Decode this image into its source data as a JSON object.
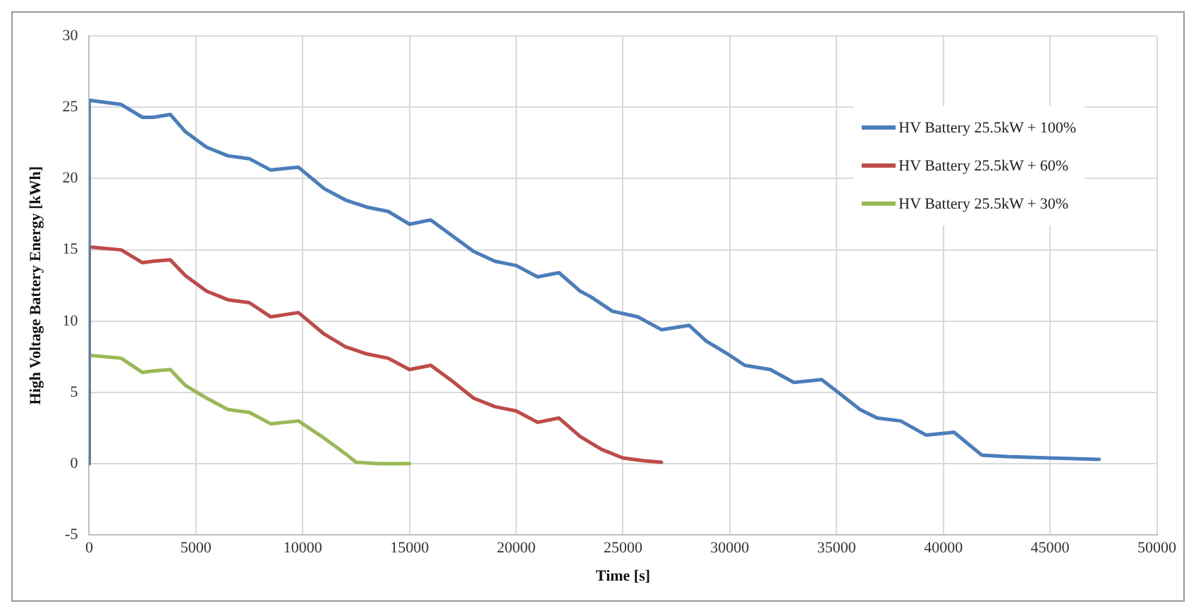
{
  "chart_data": {
    "type": "line",
    "xlabel": "Time [s]",
    "ylabel": "High Voltage Battery Energy [kWh]",
    "xlim": [
      0,
      50000
    ],
    "xticks": [
      0,
      5000,
      10000,
      15000,
      20000,
      25000,
      30000,
      35000,
      40000,
      45000,
      50000
    ],
    "ylim": [
      -5,
      30
    ],
    "yticks": [
      -5,
      0,
      5,
      10,
      15,
      20,
      25,
      30
    ],
    "grid": true,
    "legend": "top right",
    "marker": "none",
    "line_style": "solid",
    "series": [
      {
        "name": "HV Battery 25.5kW + 100%",
        "color": "#4a7ebb",
        "x": [
          0,
          0,
          1500,
          2500,
          3000,
          3800,
          4500,
          5500,
          6500,
          7500,
          8500,
          9800,
          11000,
          12000,
          13000,
          14000,
          15000,
          16000,
          17000,
          18000,
          19000,
          20000,
          21000,
          22000,
          23000,
          23500,
          24500,
          25700,
          26800,
          28100,
          28900,
          29900,
          30700,
          31900,
          33000,
          34300,
          35000,
          36100,
          36900,
          38000,
          39200,
          40500,
          41800,
          43000,
          45000,
          47300
        ],
        "values": [
          0,
          25.5,
          25.2,
          24.3,
          24.3,
          24.5,
          23.3,
          22.2,
          21.6,
          21.4,
          20.6,
          20.8,
          19.3,
          18.5,
          18,
          17.7,
          16.8,
          17.1,
          16,
          14.9,
          14.2,
          13.9,
          13.1,
          13.4,
          12.1,
          11.7,
          10.7,
          10.3,
          9.4,
          9.7,
          8.6,
          7.7,
          6.9,
          6.6,
          5.7,
          5.9,
          5.1,
          3.8,
          3.2,
          3,
          2,
          2.2,
          0.6,
          0.5,
          0.4,
          0.3
        ]
      },
      {
        "name": "HV Battery 25.5kW + 60%",
        "color": "#be4b48",
        "x": [
          0,
          0,
          1500,
          2500,
          3000,
          3800,
          4500,
          5500,
          6500,
          7500,
          8500,
          9800,
          11000,
          12000,
          13000,
          14000,
          15000,
          16000,
          17000,
          18000,
          19000,
          20000,
          21000,
          22000,
          23000,
          24000,
          25000,
          26000,
          26800
        ],
        "values": [
          0,
          15.2,
          15,
          14.1,
          14.2,
          14.3,
          13.2,
          12.1,
          11.5,
          11.3,
          10.3,
          10.6,
          9.1,
          8.2,
          7.7,
          7.4,
          6.6,
          6.9,
          5.8,
          4.6,
          4,
          3.7,
          2.9,
          3.2,
          1.9,
          1,
          0.4,
          0.2,
          0.1
        ]
      },
      {
        "name": "HV Battery 25.5kW + 30%",
        "color": "#98b954",
        "x": [
          0,
          0,
          1500,
          2500,
          3000,
          3800,
          4500,
          5500,
          6500,
          7500,
          8500,
          9800,
          11000,
          12000,
          12500,
          13500,
          15000
        ],
        "values": [
          0,
          7.6,
          7.4,
          6.4,
          6.5,
          6.6,
          5.5,
          4.6,
          3.8,
          3.6,
          2.8,
          3,
          1.8,
          0.7,
          0.1,
          0,
          0
        ]
      }
    ]
  }
}
